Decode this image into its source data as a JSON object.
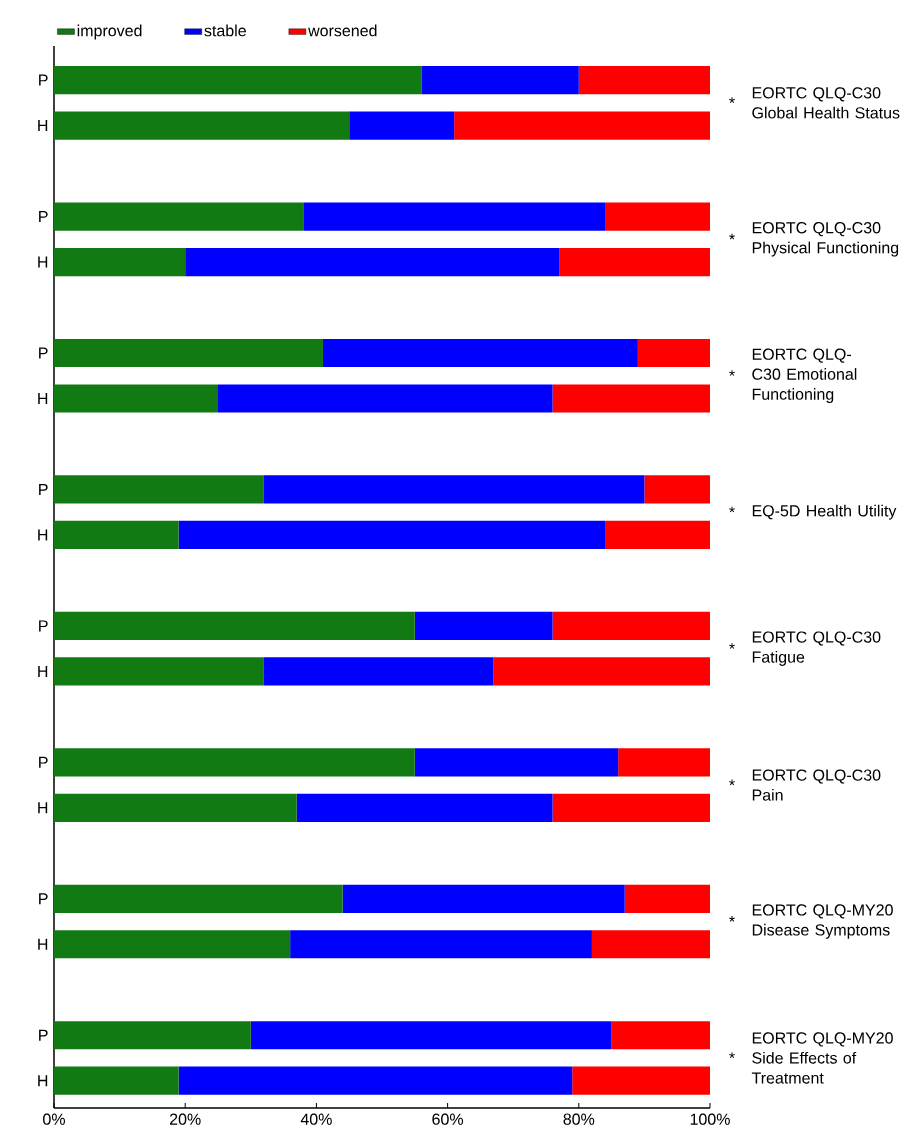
{
  "chart_data": {
    "type": "bar",
    "orientation": "horizontal",
    "stacked": true,
    "legend": "top",
    "categories": [
      "P",
      "H",
      "P",
      "H",
      "P",
      "H",
      "P",
      "H",
      "P",
      "H",
      "P",
      "H",
      "P",
      "H",
      "P",
      "H"
    ],
    "series": [
      {
        "name": "improved",
        "color": "#127a12",
        "values": [
          56,
          45,
          38,
          20,
          41,
          25,
          32,
          19,
          55,
          32,
          55,
          37,
          44,
          36,
          30,
          19
        ]
      },
      {
        "name": "stable",
        "color": "#0000ff",
        "values": [
          24,
          16,
          46,
          57,
          48,
          51,
          58,
          65,
          21,
          35,
          31,
          39,
          43,
          46,
          55,
          60
        ]
      },
      {
        "name": "worsened",
        "color": "#ff0000",
        "values": [
          20,
          39,
          16,
          23,
          11,
          24,
          10,
          16,
          24,
          33,
          14,
          24,
          13,
          18,
          15,
          21
        ]
      }
    ],
    "xlim": [
      0,
      100
    ],
    "xticks": [
      {
        "value": 0,
        "label": "0%"
      },
      {
        "value": 20,
        "label": "20%"
      },
      {
        "value": 40,
        "label": "40%"
      },
      {
        "value": 60,
        "label": "60%"
      },
      {
        "value": 80,
        "label": "80%"
      },
      {
        "value": 100,
        "label": "100%"
      }
    ],
    "annotations": [
      "*",
      "EORTC QLQ-C30 Global Health Status",
      "*",
      "EORTC QLQ-C30 Physical Functioning",
      "*",
      "EORTC QLQ-C30 Emotional Functioning",
      "*",
      "EQ-5D Health Utility",
      "*",
      "EORTC QLQ-C30 Fatigue",
      "*",
      "EORTC QLQ-C30 Pain",
      "*",
      "EORTC QLQ-MY20 Disease Symptoms",
      "*",
      "EORTC QLQ-MY20 Side Effects of Treatment"
    ]
  }
}
